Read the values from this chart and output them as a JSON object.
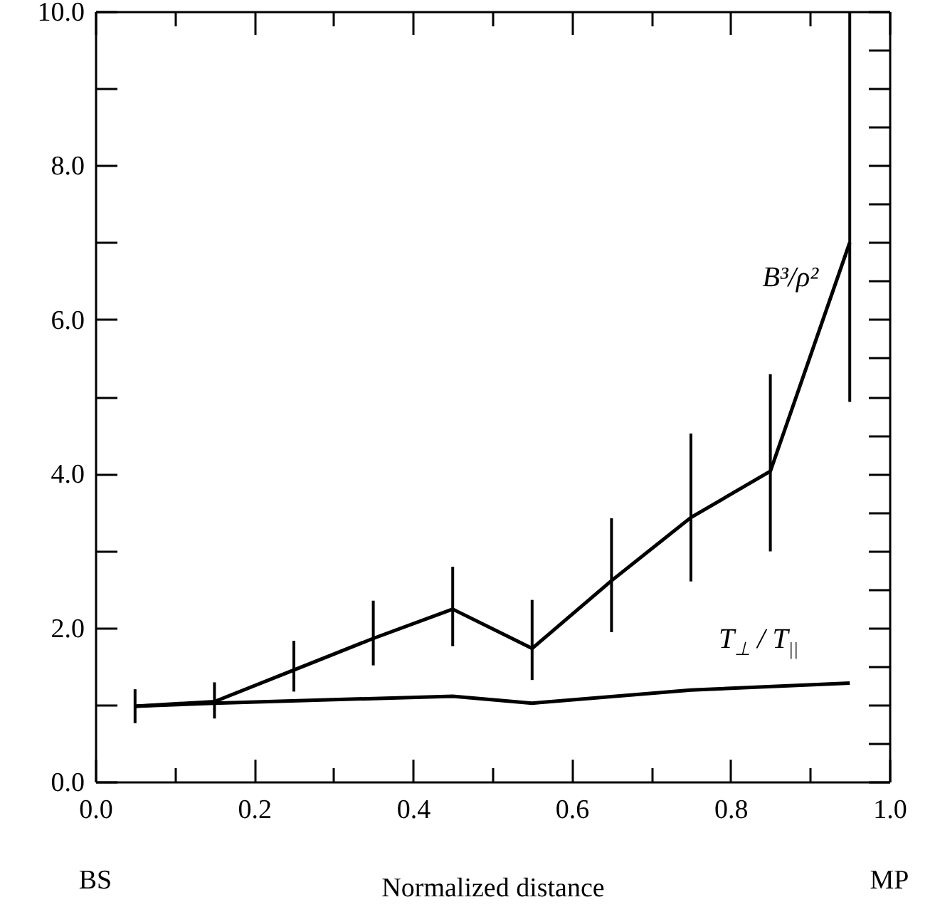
{
  "chart_data": {
    "type": "line",
    "xlabel": "Normalized distance",
    "series": [
      {
        "name": "B³/ρ²",
        "color": "#000000",
        "x": [
          0.05,
          0.15,
          0.25,
          0.35,
          0.45,
          0.55,
          0.65,
          0.75,
          0.85,
          0.95
        ],
        "values": [
          0.98,
          1.04,
          1.45,
          1.86,
          2.24,
          1.73,
          2.61,
          3.43,
          4.03,
          7.0
        ],
        "errors": [
          [
            0.76,
            1.2
          ],
          [
            0.82,
            1.29
          ],
          [
            1.17,
            1.83
          ],
          [
            1.51,
            2.35
          ],
          [
            1.76,
            2.79
          ],
          [
            1.32,
            2.36
          ],
          [
            1.94,
            3.42
          ],
          [
            2.6,
            4.52
          ],
          [
            2.99,
            5.29
          ],
          [
            4.93,
            10.0
          ]
        ]
      },
      {
        "name": "T$_{⊥}$ / T$_{||}$",
        "color": "#000000",
        "x": [
          0.05,
          0.15,
          0.45,
          0.55,
          0.75,
          0.95
        ],
        "values": [
          0.98,
          1.02,
          1.11,
          1.02,
          1.19,
          1.28
        ]
      }
    ],
    "annotations": [
      "BS",
      "MP"
    ],
    "xlim": [
      0,
      1
    ],
    "ylim": [
      0,
      10
    ],
    "xticks": [
      {
        "value": 0,
        "label": "0.0"
      },
      {
        "value": 0.1,
        "label": null
      },
      {
        "value": 0.2,
        "label": "0.2"
      },
      {
        "value": 0.3,
        "label": null
      },
      {
        "value": 0.4,
        "label": "0.4"
      },
      {
        "value": 0.5,
        "label": null
      },
      {
        "value": 0.6,
        "label": "0.6"
      },
      {
        "value": 0.7,
        "label": null
      },
      {
        "value": 0.8,
        "label": "0.8"
      },
      {
        "value": 0.9,
        "label": null
      },
      {
        "value": 1,
        "label": "1.0"
      }
    ],
    "yticks": [
      {
        "value": 0,
        "label": "0.0"
      },
      {
        "value": 0.5,
        "label": null
      },
      {
        "value": 1,
        "label": null
      },
      {
        "value": 1.5,
        "label": null
      },
      {
        "value": 2,
        "label": "2.0"
      },
      {
        "value": 2.5,
        "label": null
      },
      {
        "value": 3,
        "label": null
      },
      {
        "value": 3.5,
        "label": null
      },
      {
        "value": 4,
        "label": "4.0"
      },
      {
        "value": 4.5,
        "label": null
      },
      {
        "value": 5,
        "label": null
      },
      {
        "value": 5.5,
        "label": null
      },
      {
        "value": 6,
        "label": "6.0"
      },
      {
        "value": 6.5,
        "label": null
      },
      {
        "value": 7,
        "label": null
      },
      {
        "value": 7.5,
        "label": null
      },
      {
        "value": 8,
        "label": "8.0"
      },
      {
        "value": 8.5,
        "label": null
      },
      {
        "value": 9,
        "label": null
      },
      {
        "value": 9.5,
        "label": null
      },
      {
        "value": 10,
        "label": "10.0"
      }
    ],
    "grid": false,
    "marker": "none",
    "line_style": "solid"
  }
}
